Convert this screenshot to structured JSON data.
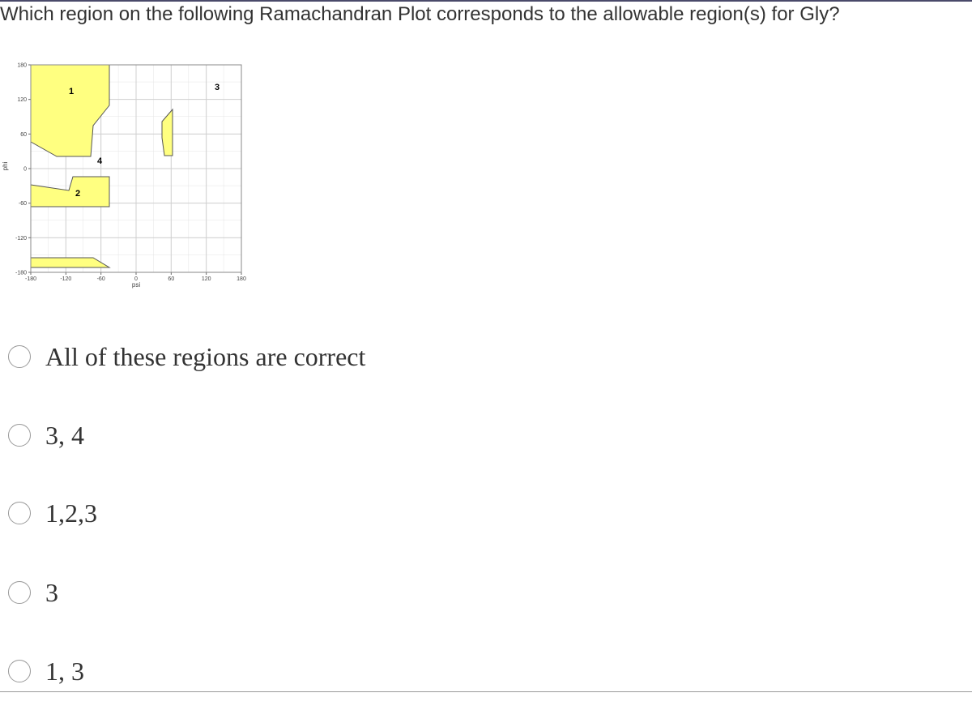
{
  "question": "Which region on the following Ramachandran Plot corresponds to the allowable region(s) for Gly?",
  "figure": {
    "xlabel": "psi",
    "ylabel": "phi",
    "xlim": [
      -180,
      180
    ],
    "ylim": [
      -180,
      180
    ],
    "xticks": [
      -180,
      -120,
      -60,
      0,
      60,
      120,
      180
    ],
    "yticks": [
      180,
      120,
      60,
      0,
      -60,
      -120,
      -180
    ],
    "region_labels": [
      "1",
      "2",
      "3",
      "4"
    ]
  },
  "options": [
    "All of these regions are correct",
    "3, 4",
    "1,2,3",
    "3",
    "1, 3"
  ]
}
